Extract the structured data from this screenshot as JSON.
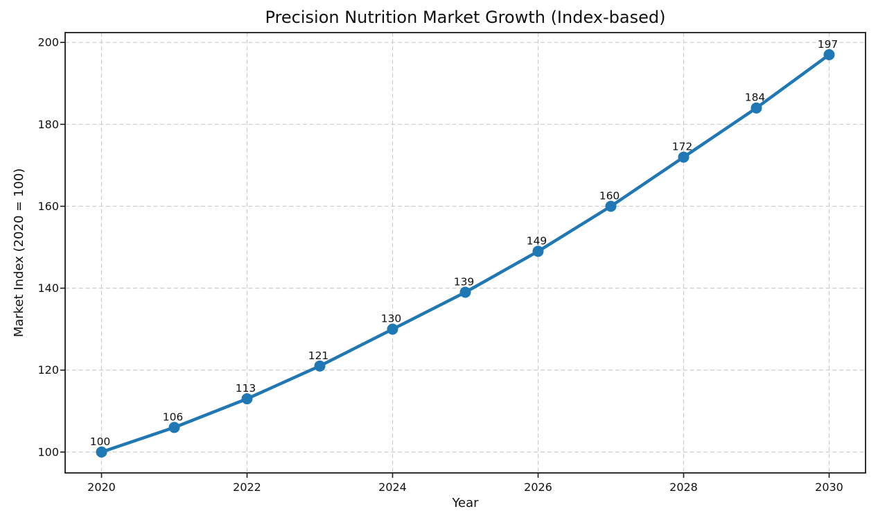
{
  "figure": {
    "background": "#ffffff"
  },
  "chart_data": {
    "type": "line",
    "title": "Precision Nutrition Market Growth (Index-based)",
    "xlabel": "Year",
    "ylabel": "Market Index (2020 = 100)",
    "x": [
      2020,
      2021,
      2022,
      2023,
      2024,
      2025,
      2026,
      2027,
      2028,
      2029,
      2030
    ],
    "values": [
      100,
      106,
      113,
      121,
      130,
      139,
      149,
      160,
      172,
      184,
      197
    ],
    "point_labels": [
      "100",
      "106",
      "113",
      "121",
      "130",
      "139",
      "149",
      "160",
      "172",
      "184",
      "197"
    ],
    "xticks": [
      2020,
      2022,
      2024,
      2026,
      2028,
      2030
    ],
    "yticks": [
      100,
      120,
      140,
      160,
      180,
      200
    ],
    "xlim": [
      2019.5,
      2030.5
    ],
    "ylim": [
      94.9,
      202.4
    ],
    "grid": true,
    "grid_style": "dashed",
    "legend": "none",
    "line_color": "#1f77b4",
    "marker_color": "#1f77b4",
    "marker_shape": "circle",
    "grid_color": "#cccccc",
    "axis_color": "#1a1a1a",
    "text_color": "#111111"
  }
}
